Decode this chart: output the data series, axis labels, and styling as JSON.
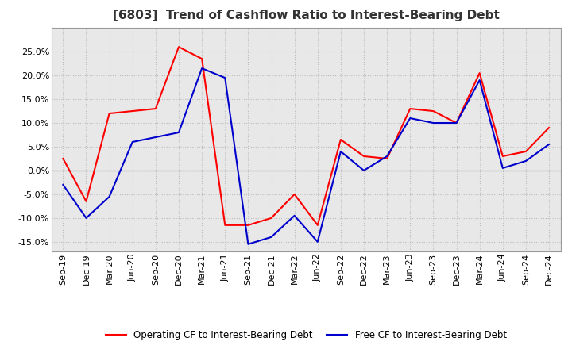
{
  "title": "[6803]  Trend of Cashflow Ratio to Interest-Bearing Debt",
  "x_labels": [
    "Sep-19",
    "Dec-19",
    "Mar-20",
    "Jun-20",
    "Sep-20",
    "Dec-20",
    "Mar-21",
    "Jun-21",
    "Sep-21",
    "Dec-21",
    "Mar-22",
    "Jun-22",
    "Sep-22",
    "Dec-22",
    "Mar-23",
    "Jun-23",
    "Sep-23",
    "Dec-23",
    "Mar-24",
    "Jun-24",
    "Sep-24",
    "Dec-24"
  ],
  "operating_cf": [
    2.5,
    -6.5,
    12.0,
    12.5,
    13.0,
    26.0,
    23.5,
    -11.5,
    -11.5,
    -10.0,
    -5.0,
    -11.5,
    6.5,
    3.0,
    2.5,
    13.0,
    12.5,
    10.0,
    20.5,
    3.0,
    4.0,
    9.0
  ],
  "free_cf": [
    -3.0,
    -10.0,
    -5.5,
    6.0,
    7.0,
    8.0,
    21.5,
    19.5,
    -15.5,
    -14.0,
    -9.5,
    -15.0,
    4.0,
    0.0,
    3.0,
    11.0,
    10.0,
    10.0,
    19.0,
    0.5,
    2.0,
    5.5
  ],
  "operating_color": "#ff0000",
  "free_color": "#0000cc",
  "ylim_min": -17,
  "ylim_max": 30,
  "yticks": [
    -15,
    -10,
    -5,
    0,
    5,
    10,
    15,
    20,
    25
  ],
  "background_color": "#ffffff",
  "plot_bg_color": "#e8e8e8",
  "grid_color": "#bbbbbb",
  "legend_op_label": "Operating CF to Interest-Bearing Debt",
  "legend_free_label": "Free CF to Interest-Bearing Debt",
  "zero_line_color": "#555555",
  "title_fontsize": 11,
  "axis_fontsize": 8,
  "legend_fontsize": 8.5
}
